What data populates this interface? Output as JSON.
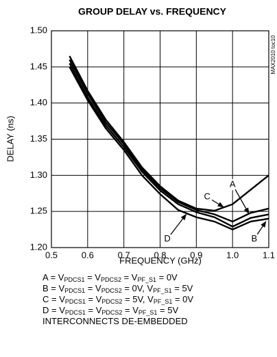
{
  "chart_data": {
    "type": "line",
    "title": "GROUP DELAY vs. FREQUENCY",
    "side_label": "MAX2010 toc10",
    "x_label": "FREQUENCY (GHz)",
    "y_label": "DELAY (ns)",
    "x": [
      0.55,
      0.6,
      0.65,
      0.7,
      0.75,
      0.8,
      0.85,
      0.9,
      0.95,
      1.0,
      1.05,
      1.1
    ],
    "series": [
      {
        "name": "A",
        "color": "#000000",
        "values": [
          1.46,
          1.413,
          1.373,
          1.343,
          1.308,
          1.282,
          1.263,
          1.252,
          1.246,
          1.236,
          1.248,
          1.254
        ]
      },
      {
        "name": "B",
        "color": "#000000",
        "values": [
          1.455,
          1.408,
          1.369,
          1.339,
          1.305,
          1.279,
          1.26,
          1.249,
          1.242,
          1.229,
          1.241,
          1.246
        ]
      },
      {
        "name": "C",
        "color": "#000000",
        "values": [
          1.465,
          1.417,
          1.377,
          1.346,
          1.311,
          1.285,
          1.265,
          1.254,
          1.251,
          1.26,
          1.28,
          1.3
        ]
      },
      {
        "name": "D",
        "color": "#000000",
        "values": [
          1.45,
          1.404,
          1.365,
          1.335,
          1.3,
          1.274,
          1.252,
          1.242,
          1.236,
          1.225,
          1.236,
          1.24
        ]
      }
    ],
    "xlim": [
      0.5,
      1.1
    ],
    "ylim": [
      1.2,
      1.5
    ],
    "xticks": [
      0.5,
      0.6,
      0.7,
      0.8,
      0.9,
      {
        "value": 1,
        "label": "1.0"
      },
      1.1
    ],
    "yticks": [
      {
        "value": 1.2,
        "label": "1.20"
      },
      1.25,
      {
        "value": 1.3,
        "label": "1.30"
      },
      1.35,
      {
        "value": 1.4,
        "label": "1.40"
      },
      1.45,
      {
        "value": 1.5,
        "label": "1.50"
      }
    ],
    "grid": true,
    "notes": [
      [
        "A = V",
        "PDCS1",
        " = V",
        "PDCS2",
        " = V",
        "PF_S1",
        " = 0V"
      ],
      [
        "B = V",
        "PDCS1",
        " = V",
        "PDCS2",
        " = 0V, V",
        "PF_S1",
        " = 5V"
      ],
      [
        "C = V",
        "PDCS1",
        " = V",
        "PDCS2",
        " = 5V, V",
        "PF_S1",
        " = 0V"
      ],
      [
        "D = V",
        "PDCS1",
        " = V",
        "PDCS2",
        " = V",
        "PF_S1",
        " = 5V"
      ],
      [
        "INTERCONNECTS DE-EMBEDDED"
      ]
    ]
  }
}
